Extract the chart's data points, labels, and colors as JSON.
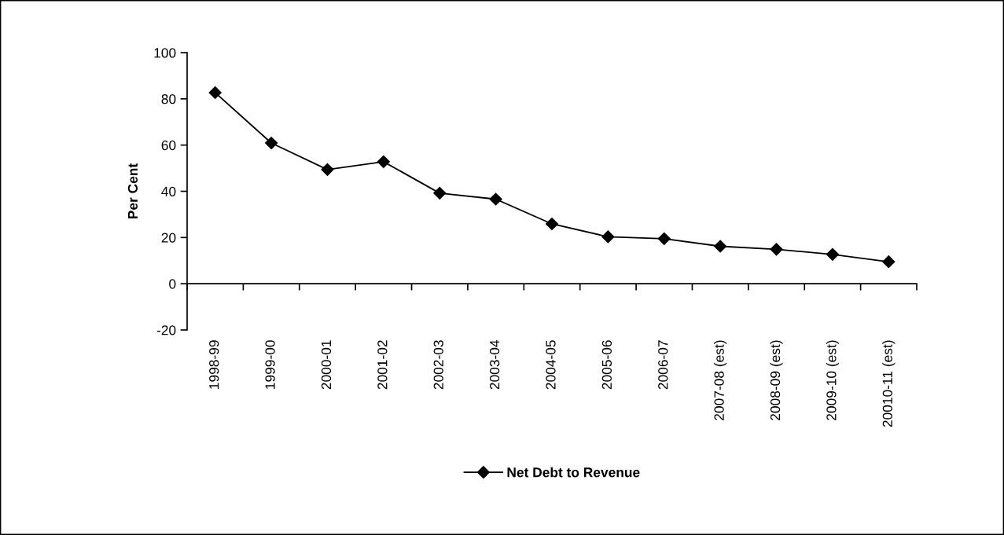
{
  "chart_data": {
    "type": "line",
    "ylabel": "Per Cent",
    "categories": [
      "1998-99",
      "1999-00",
      "2000-01",
      "2001-02",
      "2002-03",
      "2003-04",
      "2004-05",
      "2005-06",
      "2006-07",
      "2007-08 (est)",
      "2008-09 (est)",
      "2009-10 (est)",
      "20010-11 (est)"
    ],
    "series": [
      {
        "name": "Net Debt to Revenue",
        "color": "#000000",
        "values": [
          82.7,
          60.9,
          49.4,
          52.8,
          39.2,
          36.6,
          25.9,
          20.3,
          19.5,
          16.2,
          14.9,
          12.7,
          9.5
        ]
      }
    ],
    "ylim": [
      -20,
      100
    ],
    "yticks": [
      -20,
      0,
      20,
      40,
      60,
      80,
      100
    ],
    "legend": "bottom",
    "marker": "diamond",
    "line_style": "solid"
  }
}
